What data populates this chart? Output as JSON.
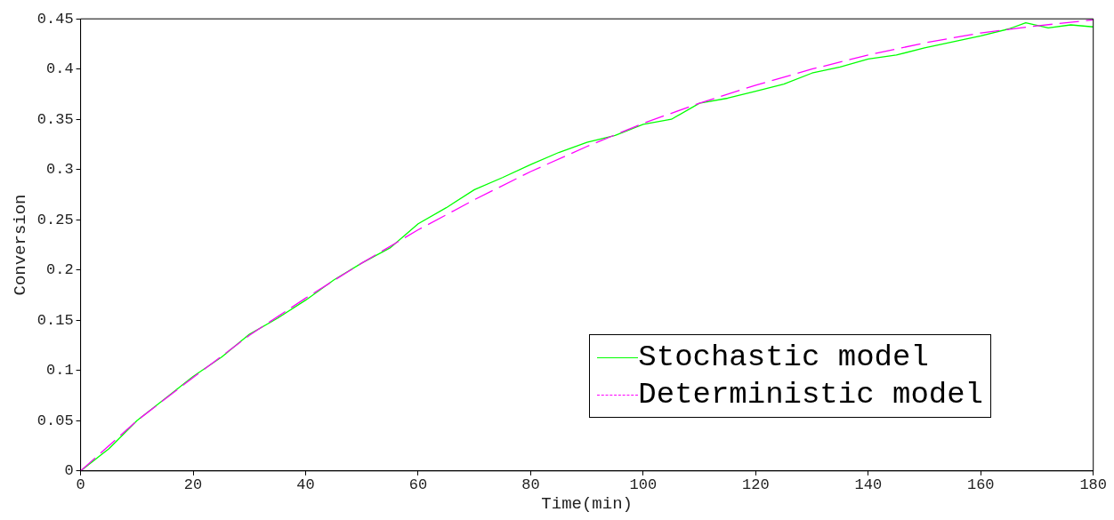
{
  "chart_data": {
    "type": "line",
    "xlabel": "Time(min)",
    "ylabel": "Conversion",
    "xlim": [
      0,
      180
    ],
    "xticks": [
      0,
      20,
      40,
      60,
      80,
      100,
      120,
      140,
      160,
      180
    ],
    "ylim": [
      0,
      0.45
    ],
    "yticks": [
      0,
      0.05,
      0.1,
      0.15,
      0.2,
      0.25,
      0.3,
      0.35,
      0.4,
      0.45
    ],
    "grid": false,
    "legend": "bottom right",
    "marker": "none",
    "series": [
      {
        "name": "Stochastic model",
        "color": "#00ff00",
        "line_style": "solid",
        "x": [
          0,
          5,
          10,
          15,
          20,
          25,
          30,
          35,
          40,
          45,
          50,
          55,
          60,
          65,
          70,
          75,
          80,
          85,
          90,
          95,
          100,
          105,
          110,
          115,
          120,
          125,
          130,
          135,
          140,
          145,
          150,
          155,
          160,
          165,
          168,
          172,
          176,
          180
        ],
        "values": [
          0,
          0.022,
          0.05,
          0.072,
          0.094,
          0.113,
          0.136,
          0.152,
          0.17,
          0.19,
          0.207,
          0.222,
          0.246,
          0.262,
          0.28,
          0.292,
          0.305,
          0.317,
          0.327,
          0.334,
          0.345,
          0.35,
          0.366,
          0.371,
          0.378,
          0.385,
          0.396,
          0.402,
          0.41,
          0.414,
          0.421,
          0.427,
          0.433,
          0.44,
          0.446,
          0.441,
          0.444,
          0.442
        ]
      },
      {
        "name": "Deterministic model",
        "color": "#ff00ff",
        "line_style": "dashed",
        "x": [
          0,
          10,
          20,
          30,
          40,
          50,
          60,
          70,
          80,
          90,
          100,
          110,
          120,
          130,
          140,
          150,
          160,
          170,
          180
        ],
        "values": [
          0,
          0.05,
          0.093,
          0.135,
          0.172,
          0.207,
          0.24,
          0.27,
          0.298,
          0.323,
          0.346,
          0.366,
          0.384,
          0.4,
          0.414,
          0.426,
          0.436,
          0.443,
          0.449
        ]
      }
    ]
  }
}
